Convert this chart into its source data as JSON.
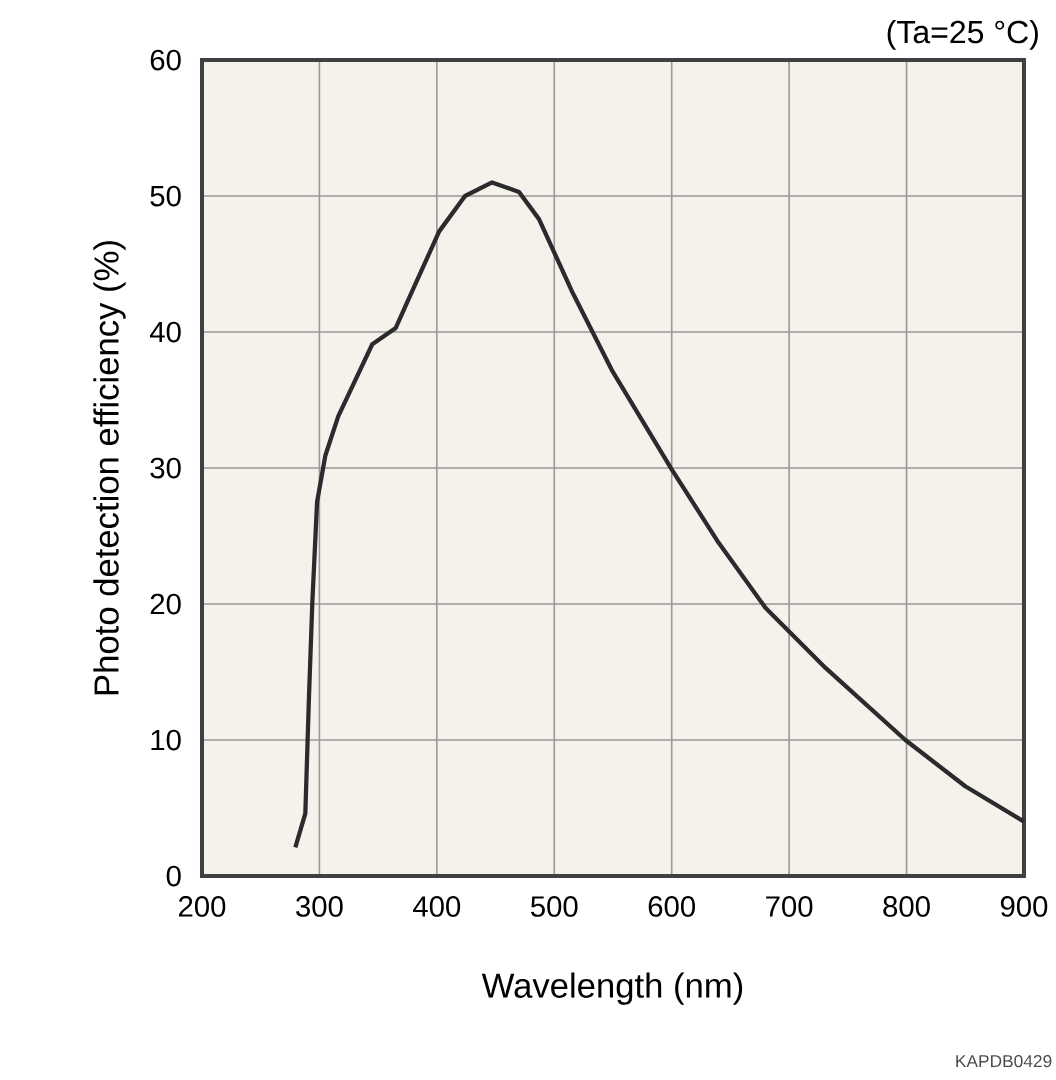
{
  "chart_data": {
    "type": "line",
    "xlabel": "Wavelength (nm)",
    "ylabel": "Photo detection efficiency (%)",
    "annotations": [
      "(Ta=25 °C)",
      "KAPDB0429"
    ],
    "series": [
      {
        "color": "#2b2b2e",
        "x": [
          279.5,
          288,
          291,
          294,
          298,
          305,
          316,
          345,
          365,
          379,
          402,
          424,
          447,
          470,
          487,
          515,
          549,
          600,
          640,
          680,
          731,
          799,
          850,
          900
        ],
        "values": [
          2.1,
          4.6,
          12.9,
          20.2,
          27.5,
          30.9,
          33.8,
          39.1,
          40.3,
          43.0,
          47.4,
          50.0,
          51.0,
          50.3,
          48.3,
          43.0,
          37.2,
          29.9,
          24.5,
          19.7,
          15.3,
          10.0,
          6.6,
          4.0
        ]
      }
    ],
    "xlim": [
      200,
      900
    ],
    "xticks": [
      200,
      300,
      400,
      500,
      600,
      700,
      800,
      900
    ],
    "ylim": [
      0,
      60
    ],
    "yticks": [
      0,
      10,
      20,
      30,
      40,
      50,
      60
    ],
    "grid": true,
    "marker": "none",
    "line_style": "solid"
  }
}
